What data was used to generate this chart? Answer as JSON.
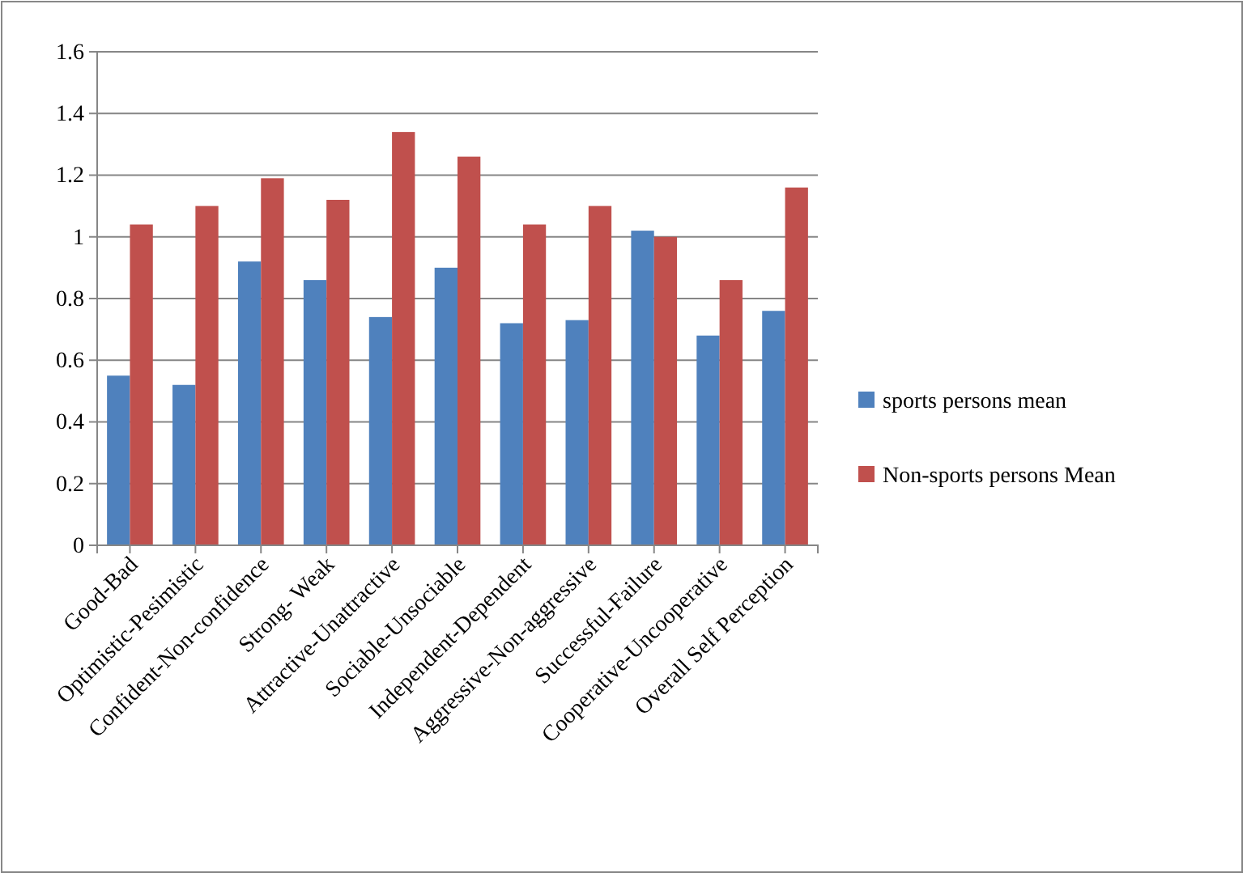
{
  "chart_data": {
    "type": "bar",
    "categories": [
      "Good-Bad",
      "Optimistic-Pesimistic",
      "Confident-Non-confidence",
      "Strong- Weak",
      "Attractive-Unattractive",
      "Sociable-Unsociable",
      "Independent-Dependent",
      "Aggressive-Non-aggressive",
      "Successful-Failure",
      "Cooperative-Uncooperative",
      "Overall Self Perception"
    ],
    "series": [
      {
        "name": "sports persons mean",
        "color": "#4f81bd",
        "values": [
          0.55,
          0.52,
          0.92,
          0.86,
          0.74,
          0.9,
          0.72,
          0.73,
          1.02,
          0.68,
          0.76
        ]
      },
      {
        "name": "Non-sports persons  Mean",
        "color": "#c0504d",
        "values": [
          1.04,
          1.1,
          1.19,
          1.12,
          1.34,
          1.26,
          1.04,
          1.1,
          1.0,
          0.86,
          1.16
        ]
      }
    ],
    "ylim": [
      0,
      1.6
    ],
    "yticks": [
      0,
      0.2,
      0.4,
      0.6,
      0.8,
      1,
      1.2,
      1.4,
      1.6
    ],
    "grid": "y",
    "legend": "right"
  }
}
